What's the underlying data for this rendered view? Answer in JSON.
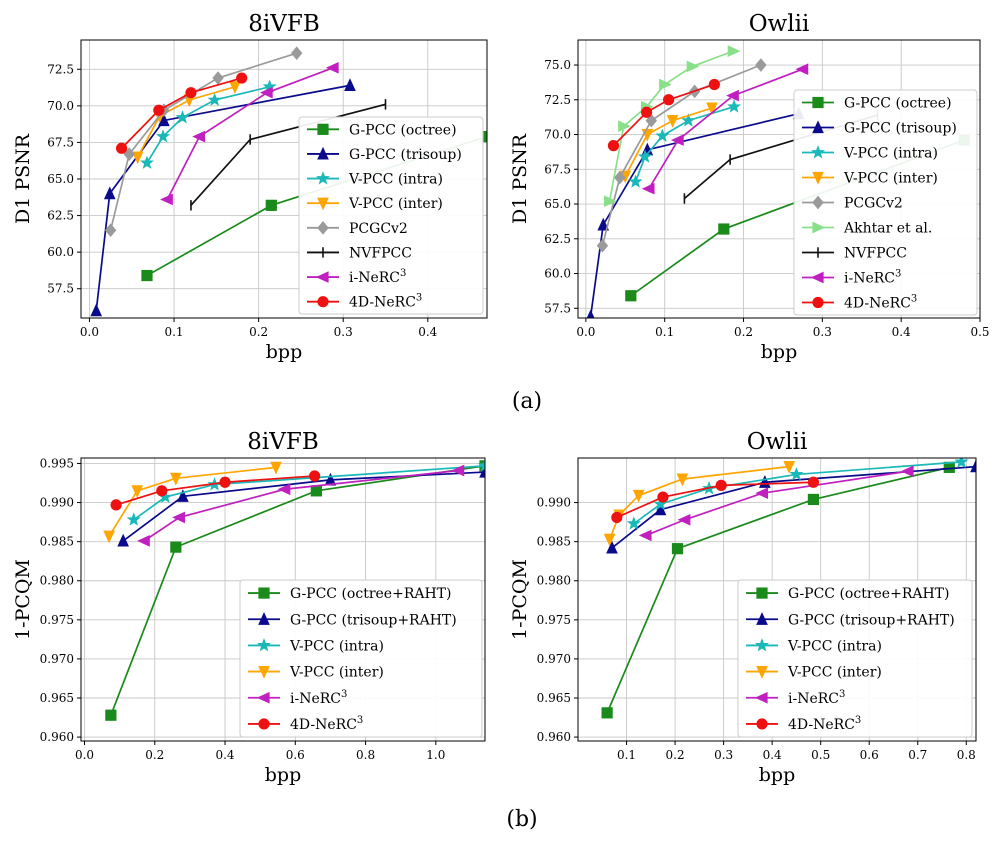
{
  "labels": {
    "a": "(a)",
    "b": "(b)"
  },
  "chart_data": [
    {
      "type": "line",
      "title": "8iVFB",
      "xlabel": "bpp",
      "ylabel": "D1 PSNR",
      "xlim": [
        -0.01,
        0.47
      ],
      "ylim": [
        55.5,
        74.5
      ],
      "xticks": [
        0.0,
        0.1,
        0.2,
        0.3,
        0.4
      ],
      "xtick_labels": [
        "0.0",
        "0.1",
        "0.2",
        "0.3",
        "0.4"
      ],
      "yticks": [
        57.5,
        60.0,
        62.5,
        65.0,
        67.5,
        70.0,
        72.5
      ],
      "ytick_labels": [
        "57.5",
        "60.0",
        "62.5",
        "65.0",
        "67.5",
        "70.0",
        "72.5"
      ],
      "grid": true,
      "legend": "lower-right",
      "series": [
        {
          "name": "G-PCC (octree)",
          "color": "#1a8a1a",
          "marker": "square",
          "x": [
            0.068,
            0.215,
            0.47
          ],
          "y": [
            58.4,
            63.2,
            67.9
          ]
        },
        {
          "name": "G-PCC (trisoup)",
          "color": "#0a0a8c",
          "marker": "triangle-up",
          "x": [
            0.008,
            0.024,
            0.088,
            0.308
          ],
          "y": [
            56.0,
            64.0,
            69.0,
            71.4
          ]
        },
        {
          "name": "V-PCC (intra)",
          "color": "#1ab8b8",
          "marker": "star",
          "x": [
            0.068,
            0.087,
            0.11,
            0.148,
            0.213
          ],
          "y": [
            66.1,
            67.9,
            69.2,
            70.4,
            71.3
          ]
        },
        {
          "name": "V-PCC (inter)",
          "color": "#ffa500",
          "marker": "triangle-down",
          "x": [
            0.057,
            0.083,
            0.118,
            0.172
          ],
          "y": [
            66.5,
            69.3,
            70.4,
            71.3
          ]
        },
        {
          "name": "PCGCv2",
          "color": "#9a9a9a",
          "marker": "diamond",
          "x": [
            0.025,
            0.047,
            0.088,
            0.152,
            0.245
          ],
          "y": [
            61.5,
            66.7,
            69.7,
            71.9,
            73.6
          ]
        },
        {
          "name": "NVFPCC",
          "color": "#111111",
          "marker": "tick",
          "x": [
            0.12,
            0.19,
            0.35
          ],
          "y": [
            63.2,
            67.7,
            70.1
          ]
        },
        {
          "name": "i-NeRC³",
          "color": "#c020c0",
          "marker": "triangle-left",
          "x": [
            0.092,
            0.13,
            0.21,
            0.288
          ],
          "y": [
            63.6,
            67.9,
            70.9,
            72.6
          ]
        },
        {
          "name": "4D-NeRC³",
          "color": "#ee1111",
          "marker": "circle",
          "x": [
            0.038,
            0.082,
            0.12,
            0.18
          ],
          "y": [
            67.1,
            69.7,
            70.9,
            71.9
          ]
        }
      ]
    },
    {
      "type": "line",
      "title": "Owlii",
      "xlabel": "bpp",
      "ylabel": "D1 PSNR",
      "xlim": [
        -0.01,
        0.5
      ],
      "ylim": [
        56.8,
        76.8
      ],
      "xticks": [
        0.0,
        0.1,
        0.2,
        0.3,
        0.4,
        0.5
      ],
      "xtick_labels": [
        "0.0",
        "0.1",
        "0.2",
        "0.3",
        "0.4",
        "0.5"
      ],
      "yticks": [
        57.5,
        60.0,
        62.5,
        65.0,
        67.5,
        70.0,
        72.5,
        75.0
      ],
      "ytick_labels": [
        "57.5",
        "60.0",
        "62.5",
        "65.0",
        "67.5",
        "70.0",
        "72.5",
        "75.0"
      ],
      "grid": true,
      "legend": "right",
      "series": [
        {
          "name": "G-PCC (octree)",
          "color": "#1a8a1a",
          "marker": "square",
          "x": [
            0.057,
            0.175,
            0.48
          ],
          "y": [
            58.4,
            63.2,
            69.6
          ]
        },
        {
          "name": "G-PCC (trisoup)",
          "color": "#0a0a8c",
          "marker": "triangle-up",
          "x": [
            0.006,
            0.022,
            0.078,
            0.27
          ],
          "y": [
            56.9,
            63.5,
            68.9,
            71.5
          ]
        },
        {
          "name": "V-PCC (intra)",
          "color": "#1ab8b8",
          "marker": "star",
          "x": [
            0.063,
            0.075,
            0.097,
            0.13,
            0.188
          ],
          "y": [
            66.6,
            68.4,
            69.9,
            71.0,
            72.0
          ]
        },
        {
          "name": "V-PCC (inter)",
          "color": "#ffa500",
          "marker": "triangle-down",
          "x": [
            0.05,
            0.078,
            0.11,
            0.16
          ],
          "y": [
            67.0,
            70.0,
            71.0,
            71.9
          ]
        },
        {
          "name": "PCGCv2",
          "color": "#9a9a9a",
          "marker": "diamond",
          "x": [
            0.021,
            0.043,
            0.083,
            0.138,
            0.222
          ],
          "y": [
            62.0,
            66.9,
            71.0,
            73.1,
            75.0
          ]
        },
        {
          "name": "Akhtar et al.",
          "color": "#88e088",
          "marker": "triangle-right",
          "x": [
            0.03,
            0.048,
            0.077,
            0.1,
            0.135,
            0.187
          ],
          "y": [
            65.2,
            70.6,
            72.0,
            73.6,
            74.9,
            76.0
          ]
        },
        {
          "name": "NVFPCC",
          "color": "#111111",
          "marker": "tick",
          "x": [
            0.125,
            0.183,
            0.37
          ],
          "y": [
            65.4,
            68.2,
            71.4
          ]
        },
        {
          "name": "i-NeRC³",
          "color": "#c020c0",
          "marker": "triangle-left",
          "x": [
            0.08,
            0.117,
            0.187,
            0.275
          ],
          "y": [
            66.1,
            69.6,
            72.8,
            74.7
          ]
        },
        {
          "name": "4D-NeRC³",
          "color": "#ee1111",
          "marker": "circle",
          "x": [
            0.035,
            0.077,
            0.105,
            0.163
          ],
          "y": [
            69.2,
            71.6,
            72.5,
            73.6
          ]
        }
      ]
    },
    {
      "type": "line",
      "title": "8iVFB",
      "xlabel": "bpp",
      "ylabel": "1-PCQM",
      "xlim": [
        -0.01,
        1.14
      ],
      "ylim": [
        0.9595,
        0.9957
      ],
      "xticks": [
        0.0,
        0.2,
        0.4,
        0.6,
        0.8,
        1.0
      ],
      "xtick_labels": [
        "0.0",
        "0.2",
        "0.4",
        "0.6",
        "0.8",
        "1.0"
      ],
      "yticks": [
        0.96,
        0.965,
        0.97,
        0.975,
        0.98,
        0.985,
        0.99,
        0.995
      ],
      "ytick_labels": [
        "0.960",
        "0.965",
        "0.970",
        "0.975",
        "0.980",
        "0.985",
        "0.990",
        "0.995"
      ],
      "grid": true,
      "legend": "lower-right",
      "series": [
        {
          "name": "G-PCC (octree+RAHT)",
          "color": "#1a8a1a",
          "marker": "square",
          "x": [
            0.075,
            0.26,
            0.66,
            1.14
          ],
          "y": [
            0.9628,
            0.9843,
            0.9915,
            0.9947
          ]
        },
        {
          "name": "G-PCC (trisoup+RAHT)",
          "color": "#0a0a8c",
          "marker": "triangle-up",
          "x": [
            0.11,
            0.28,
            0.7,
            1.14
          ],
          "y": [
            0.9851,
            0.9908,
            0.9929,
            0.9939
          ]
        },
        {
          "name": "V-PCC (intra)",
          "color": "#1ab8b8",
          "marker": "star",
          "x": [
            0.14,
            0.23,
            0.37,
            1.14
          ],
          "y": [
            0.9878,
            0.9907,
            0.9923,
            0.9947
          ]
        },
        {
          "name": "V-PCC (inter)",
          "color": "#ffa500",
          "marker": "triangle-down",
          "x": [
            0.07,
            0.15,
            0.26,
            0.545
          ],
          "y": [
            0.9857,
            0.9915,
            0.9931,
            0.9945
          ]
        },
        {
          "name": "i-NeRC³",
          "color": "#c020c0",
          "marker": "triangle-left",
          "x": [
            0.17,
            0.27,
            0.57,
            1.065
          ],
          "y": [
            0.9851,
            0.9881,
            0.9917,
            0.9941
          ]
        },
        {
          "name": "4D-NeRC³",
          "color": "#ee1111",
          "marker": "circle",
          "x": [
            0.09,
            0.22,
            0.4,
            0.655
          ],
          "y": [
            0.9897,
            0.9915,
            0.9926,
            0.9934
          ]
        }
      ]
    },
    {
      "type": "line",
      "title": "Owlii",
      "xlabel": "bpp",
      "ylabel": "1-PCQM",
      "xlim": [
        0.0,
        0.82
      ],
      "ylim": [
        0.9595,
        0.9957
      ],
      "xticks": [
        0.1,
        0.2,
        0.3,
        0.4,
        0.5,
        0.6,
        0.7,
        0.8
      ],
      "xtick_labels": [
        "0.1",
        "0.2",
        "0.3",
        "0.4",
        "0.5",
        "0.6",
        "0.7",
        "0.8"
      ],
      "yticks": [
        0.96,
        0.965,
        0.97,
        0.975,
        0.98,
        0.985,
        0.99
      ],
      "ytick_labels": [
        "0.960",
        "0.965",
        "0.970",
        "0.975",
        "0.980",
        "0.985",
        "0.990"
      ],
      "grid": true,
      "legend": "lower-right",
      "series": [
        {
          "name": "G-PCC (octree+RAHT)",
          "color": "#1a8a1a",
          "marker": "square",
          "x": [
            0.06,
            0.205,
            0.485,
            0.765
          ],
          "y": [
            0.9631,
            0.9841,
            0.9904,
            0.9945
          ]
        },
        {
          "name": "G-PCC (trisoup+RAHT)",
          "color": "#0a0a8c",
          "marker": "triangle-up",
          "x": [
            0.07,
            0.17,
            0.385,
            0.82
          ],
          "y": [
            0.9842,
            0.9891,
            0.9926,
            0.9946
          ]
        },
        {
          "name": "V-PCC (intra)",
          "color": "#1ab8b8",
          "marker": "star",
          "x": [
            0.115,
            0.17,
            0.27,
            0.45,
            0.79
          ],
          "y": [
            0.9873,
            0.9898,
            0.9918,
            0.9936,
            0.9952
          ]
        },
        {
          "name": "V-PCC (inter)",
          "color": "#ffa500",
          "marker": "triangle-down",
          "x": [
            0.065,
            0.085,
            0.125,
            0.215,
            0.435
          ],
          "y": [
            0.9853,
            0.9884,
            0.9909,
            0.993,
            0.9946
          ]
        },
        {
          "name": "i-NeRC³",
          "color": "#c020c0",
          "marker": "triangle-left",
          "x": [
            0.14,
            0.22,
            0.38,
            0.68
          ],
          "y": [
            0.9858,
            0.9878,
            0.9912,
            0.994
          ]
        },
        {
          "name": "4D-NeRC³",
          "color": "#ee1111",
          "marker": "circle",
          "x": [
            0.08,
            0.175,
            0.295,
            0.485
          ],
          "y": [
            0.9881,
            0.9907,
            0.9922,
            0.9926
          ]
        }
      ]
    }
  ]
}
